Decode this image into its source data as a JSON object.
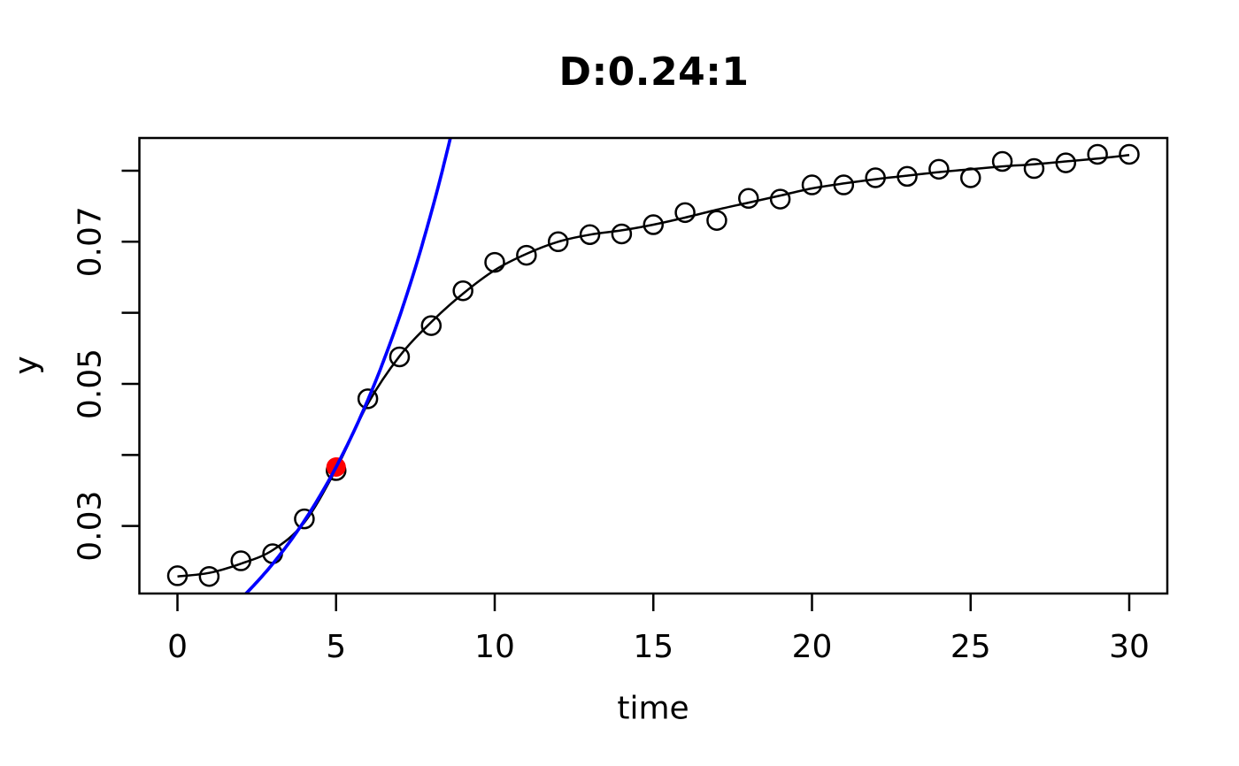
{
  "chart_data": {
    "type": "scatter",
    "title": "D:0.24:1",
    "xlabel": "time",
    "ylabel": "y",
    "x_range": [
      -1.2,
      31.2
    ],
    "y_range": [
      0.0205,
      0.0846
    ],
    "x_ticks": [
      0,
      5,
      10,
      15,
      20,
      25,
      30
    ],
    "x_tick_labels": [
      "0",
      "5",
      "10",
      "15",
      "20",
      "25",
      "30"
    ],
    "y_ticks": [
      0.03,
      0.04,
      0.05,
      0.06,
      0.07,
      0.08
    ],
    "y_tick_labels": [
      "0.03",
      "",
      "0.05",
      "",
      "0.07",
      ""
    ],
    "grid": false,
    "legend": "none",
    "points": {
      "marker": "open-circle",
      "color": "#000000",
      "x": [
        0,
        1,
        2,
        3,
        4,
        5,
        6,
        7,
        8,
        9,
        10,
        11,
        12,
        13,
        14,
        15,
        16,
        17,
        18,
        19,
        20,
        21,
        22,
        23,
        24,
        25,
        26,
        27,
        28,
        29,
        30
      ],
      "y": [
        0.023,
        0.0229,
        0.0251,
        0.0261,
        0.031,
        0.0378,
        0.0479,
        0.0538,
        0.0582,
        0.0631,
        0.0671,
        0.0681,
        0.07,
        0.071,
        0.0711,
        0.0724,
        0.0741,
        0.073,
        0.0761,
        0.076,
        0.078,
        0.078,
        0.079,
        0.0792,
        0.0802,
        0.079,
        0.0813,
        0.0803,
        0.0811,
        0.0823,
        0.0823
      ]
    },
    "smooth_line": {
      "description": "black smooth fit through points",
      "color": "#000000",
      "x": [
        0,
        1,
        2,
        3,
        4,
        5,
        6,
        7,
        8,
        9,
        10,
        11,
        12,
        13,
        14,
        15,
        16,
        17,
        18,
        19,
        20,
        21,
        22,
        23,
        24,
        25,
        26,
        27,
        28,
        29,
        30
      ],
      "y": [
        0.0229,
        0.0234,
        0.0247,
        0.0266,
        0.0305,
        0.038,
        0.0472,
        0.0539,
        0.0587,
        0.0627,
        0.066,
        0.0683,
        0.07,
        0.071,
        0.0716,
        0.0724,
        0.0734,
        0.0745,
        0.0755,
        0.0765,
        0.0775,
        0.0782,
        0.0788,
        0.0793,
        0.0798,
        0.0802,
        0.0806,
        0.0809,
        0.0813,
        0.0817,
        0.0822
      ]
    },
    "tangent_curve": {
      "description": "blue exponential tangent curve through highlighted point",
      "model": "y = y0 * exp(rate * (x - x0))",
      "color": "#0000ff",
      "x0": 5,
      "y0": 0.0383,
      "rate": 0.22
    },
    "highlight_point": {
      "x": 5,
      "y": 0.0383,
      "color": "#ff0000",
      "marker": "filled-circle"
    }
  }
}
